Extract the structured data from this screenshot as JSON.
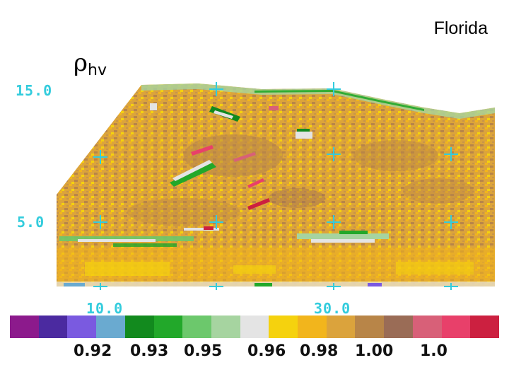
{
  "title": "Florida",
  "variable": {
    "symbol": "ρ",
    "subscript": "hv"
  },
  "y_axis_labels": [
    "15.0",
    "5.0"
  ],
  "x_axis_labels": [
    "10.0",
    "30.0"
  ],
  "colorbar": {
    "colors": [
      "#8c1a8c",
      "#4b2aa0",
      "#7a5ae0",
      "#6aaad0",
      "#128a1e",
      "#22a82a",
      "#6cc86c",
      "#a6d4a0",
      "#e4e4e4",
      "#f5d20e",
      "#f2b51c",
      "#dba33c",
      "#b88548",
      "#9a6c56",
      "#d86078",
      "#e8406a",
      "#cc2040"
    ],
    "tick_labels": [
      "0.92",
      "0.93",
      "0.95",
      "0.96",
      "0.98",
      "1.00",
      "1.0"
    ]
  },
  "colors": {
    "axis_cyan": "#33ccdd",
    "plot_base": "#dca43a"
  }
}
